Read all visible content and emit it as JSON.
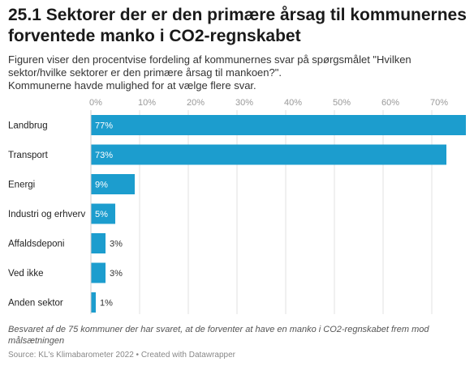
{
  "header": {
    "title": "25.1 Sektorer der er den primære årsag til kommunernes forventede manko i CO2-regnskabet",
    "subtitle": "Figuren viser den procentvise fordeling af kommunernes svar på spørgsmålet \"Hvilken sektor/hvilke sektorer er den primære årsag til mankoen?\".\nKommunerne havde mulighed for at vælge flere svar."
  },
  "footer": {
    "notes": "Besvaret af de 75 kommuner der har svaret, at de forventer at have en manko i CO2-regnskabet frem mod målsætningen",
    "source": "Source: KL's Klimabarometer 2022 • Created with Datawrapper"
  },
  "colors": {
    "bar": "#1c9dce",
    "grid": "#e2e2e2",
    "label_inside": "#ffffff",
    "label_outside": "#333333",
    "tick": "#999999"
  },
  "chart_data": {
    "type": "bar",
    "orientation": "horizontal",
    "categories": [
      "Landbrug",
      "Transport",
      "Energi",
      "Industri og erhverv",
      "Affaldsdeponi",
      "Ved ikke",
      "Anden sektor"
    ],
    "values": [
      77,
      73,
      9,
      5,
      3,
      3,
      1
    ],
    "value_labels": [
      "77%",
      "73%",
      "9%",
      "5%",
      "3%",
      "3%",
      "1%"
    ],
    "xlim": [
      0,
      77
    ],
    "xticks": [
      0,
      10,
      20,
      30,
      40,
      50,
      60,
      70
    ],
    "xtick_labels": [
      "0%",
      "10%",
      "20%",
      "30%",
      "40%",
      "50%",
      "60%",
      "70%"
    ],
    "grid": true,
    "axis_position": "top"
  }
}
